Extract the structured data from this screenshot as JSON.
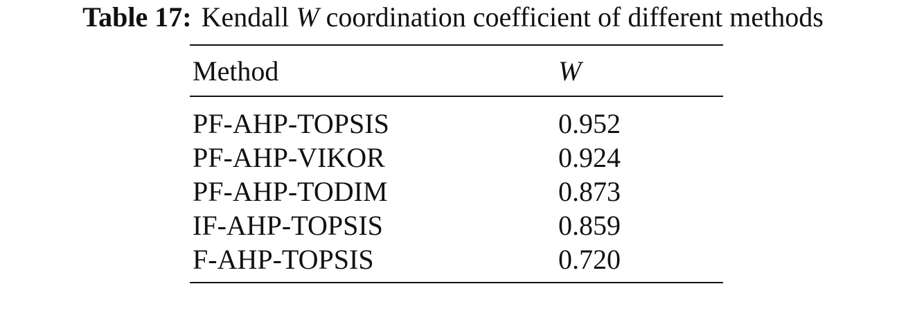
{
  "caption": {
    "label": "Table 17:",
    "text_before": "Kendall",
    "variable": "W",
    "text_after": "coordination coefficient of different methods"
  },
  "table": {
    "headers": {
      "method": "Method",
      "w": "W"
    },
    "rows": [
      {
        "method": "PF-AHP-TOPSIS",
        "w": "0.952"
      },
      {
        "method": "PF-AHP-VIKOR",
        "w": "0.924"
      },
      {
        "method": "PF-AHP-TODIM",
        "w": "0.873"
      },
      {
        "method": "IF-AHP-TOPSIS",
        "w": "0.859"
      },
      {
        "method": "F-AHP-TOPSIS",
        "w": "0.720"
      }
    ]
  }
}
